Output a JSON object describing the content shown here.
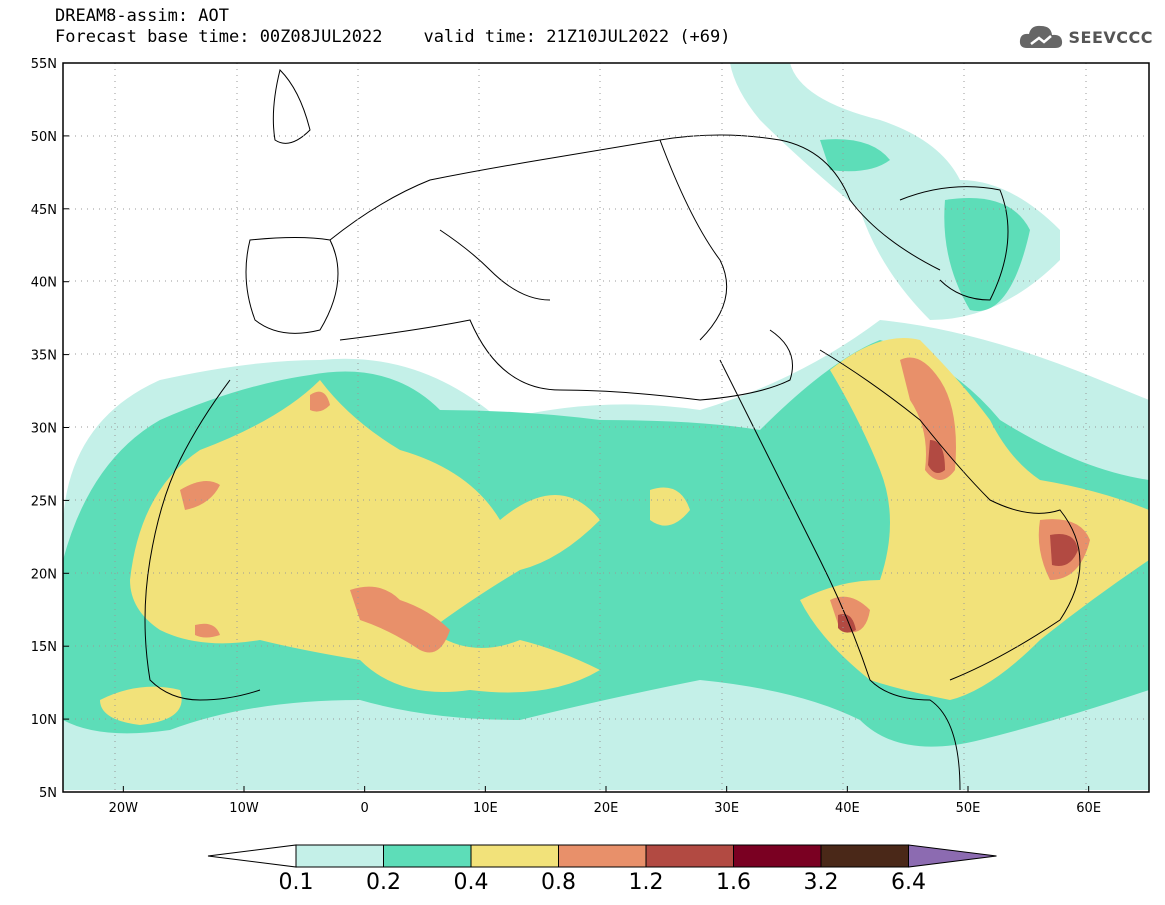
{
  "title": {
    "line1": "DREAM8-assim: AOT",
    "line2": "Forecast base time: 00Z08JUL2022    valid time: 21Z10JUL2022 (+69)"
  },
  "logo": {
    "text": "SEEVCCC",
    "icon": "cloud-icon"
  },
  "chart_data": {
    "type": "heatmap",
    "variable": "AOT",
    "lon_range": [
      -25,
      65
    ],
    "lat_range": [
      5,
      55
    ],
    "lon_ticks": [
      "20W",
      "10W",
      "0",
      "10E",
      "20E",
      "30E",
      "40E",
      "50E",
      "60E"
    ],
    "lat_ticks": [
      "5N",
      "10N",
      "15N",
      "20N",
      "25N",
      "30N",
      "35N",
      "40N",
      "45N",
      "50N",
      "55N"
    ],
    "grid": true,
    "colorbar": {
      "labels": [
        "0.1",
        "0.2",
        "0.4",
        "0.8",
        "1.2",
        "1.6",
        "3.2",
        "6.4"
      ],
      "colors": [
        "#ffffff",
        "#c4f0e8",
        "#5dddb8",
        "#f2e27a",
        "#e8906a",
        "#b24a42",
        "#7a0022",
        "#4a2818",
        "#8c6bb1"
      ]
    }
  }
}
